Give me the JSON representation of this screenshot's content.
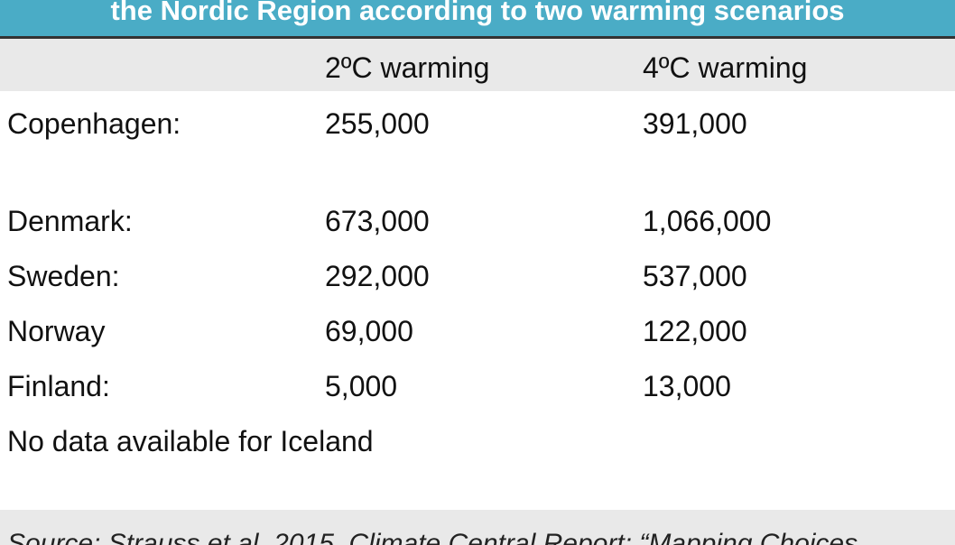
{
  "header": {
    "title": "the Nordic Region according to two warming scenarios"
  },
  "table": {
    "columns": [
      "2ºC warming",
      "4ºC warming"
    ],
    "rows": [
      {
        "label": "Copenhagen:",
        "values": [
          "255,000",
          "391,000"
        ]
      },
      {
        "label": "Denmark:",
        "values": [
          "673,000",
          "1,066,000"
        ]
      },
      {
        "label": "Sweden:",
        "values": [
          "292,000",
          "537,000"
        ]
      },
      {
        "label": "Norway",
        "values": [
          "69,000",
          "122,000"
        ]
      },
      {
        "label": "Finland:",
        "values": [
          "5,000",
          "13,000"
        ]
      }
    ]
  },
  "note": "No data available for Iceland",
  "source": "Source: Strauss et al. 2015. Climate Central Report: “Mapping Choices"
}
